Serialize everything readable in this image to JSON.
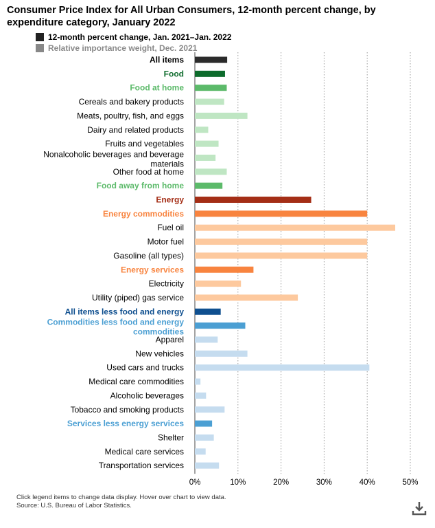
{
  "chart_data": {
    "type": "bar",
    "orientation": "horizontal",
    "title": "Consumer Price Index for All Urban Consumers, 12-month percent change, by expenditure category, January 2022",
    "legend": [
      {
        "name": "12-month percent change, Jan. 2021–Jan. 2022",
        "color": "#222222",
        "active": true
      },
      {
        "name": "Relative importance weight, Dec. 2021",
        "color": "#888888",
        "active": false
      }
    ],
    "xlim": [
      0,
      50
    ],
    "xticks": [
      0,
      10,
      20,
      30,
      40,
      50
    ],
    "xtick_labels": [
      "0%",
      "10%",
      "20%",
      "30%",
      "40%",
      "50%"
    ],
    "categories": [
      {
        "label": "All items",
        "value": 7.5,
        "color": "#2b2b2b",
        "label_color": "#000000",
        "bold": true
      },
      {
        "label": "Food",
        "value": 7.0,
        "color": "#0d6b2c",
        "label_color": "#0d6b2c",
        "bold": true
      },
      {
        "label": "Food at home",
        "value": 7.4,
        "color": "#5cba6a",
        "label_color": "#5cba6a",
        "bold": true
      },
      {
        "label": "Cereals and bakery products",
        "value": 6.8,
        "color": "#bfe6c3",
        "label_color": "#000000",
        "bold": false
      },
      {
        "label": "Meats, poultry, fish, and eggs",
        "value": 12.2,
        "color": "#bfe6c3",
        "label_color": "#000000",
        "bold": false
      },
      {
        "label": "Dairy and related products",
        "value": 3.1,
        "color": "#bfe6c3",
        "label_color": "#000000",
        "bold": false
      },
      {
        "label": "Fruits and vegetables",
        "value": 5.5,
        "color": "#bfe6c3",
        "label_color": "#000000",
        "bold": false
      },
      {
        "label": "Nonalcoholic beverages and beverage materials",
        "value": 4.8,
        "color": "#bfe6c3",
        "label_color": "#000000",
        "bold": false
      },
      {
        "label": "Other food at home",
        "value": 7.4,
        "color": "#bfe6c3",
        "label_color": "#000000",
        "bold": false
      },
      {
        "label": "Food away from home",
        "value": 6.4,
        "color": "#5cba6a",
        "label_color": "#5cba6a",
        "bold": true
      },
      {
        "label": "Energy",
        "value": 27.0,
        "color": "#a42e16",
        "label_color": "#a42e16",
        "bold": true
      },
      {
        "label": "Energy commodities",
        "value": 40.0,
        "color": "#f8843f",
        "label_color": "#f8843f",
        "bold": true
      },
      {
        "label": "Fuel oil",
        "value": 46.5,
        "color": "#fdc99e",
        "label_color": "#000000",
        "bold": false
      },
      {
        "label": "Motor fuel",
        "value": 40.0,
        "color": "#fdc99e",
        "label_color": "#000000",
        "bold": false
      },
      {
        "label": "Gasoline (all types)",
        "value": 40.0,
        "color": "#fdc99e",
        "label_color": "#000000",
        "bold": false
      },
      {
        "label": "Energy services",
        "value": 13.6,
        "color": "#f8843f",
        "label_color": "#f8843f",
        "bold": true
      },
      {
        "label": "Electricity",
        "value": 10.7,
        "color": "#fdc99e",
        "label_color": "#000000",
        "bold": false
      },
      {
        "label": "Utility (piped) gas service",
        "value": 23.9,
        "color": "#fdc99e",
        "label_color": "#000000",
        "bold": false
      },
      {
        "label": "All items less food and energy",
        "value": 6.0,
        "color": "#0f4f8f",
        "label_color": "#0f4f8f",
        "bold": true
      },
      {
        "label": "Commodities less food and energy commodities",
        "value": 11.7,
        "color": "#4b9fd3",
        "label_color": "#4b9fd3",
        "bold": true
      },
      {
        "label": "Apparel",
        "value": 5.3,
        "color": "#c5dcef",
        "label_color": "#000000",
        "bold": false
      },
      {
        "label": "New vehicles",
        "value": 12.2,
        "color": "#c5dcef",
        "label_color": "#000000",
        "bold": false
      },
      {
        "label": "Used cars and trucks",
        "value": 40.5,
        "color": "#c5dcef",
        "label_color": "#000000",
        "bold": false
      },
      {
        "label": "Medical care commodities",
        "value": 1.3,
        "color": "#c5dcef",
        "label_color": "#000000",
        "bold": false
      },
      {
        "label": "Alcoholic beverages",
        "value": 2.6,
        "color": "#c5dcef",
        "label_color": "#000000",
        "bold": false
      },
      {
        "label": "Tobacco and smoking products",
        "value": 6.9,
        "color": "#c5dcef",
        "label_color": "#000000",
        "bold": false
      },
      {
        "label": "Services less energy services",
        "value": 4.0,
        "color": "#4b9fd3",
        "label_color": "#4b9fd3",
        "bold": true
      },
      {
        "label": "Shelter",
        "value": 4.4,
        "color": "#c5dcef",
        "label_color": "#000000",
        "bold": false
      },
      {
        "label": "Medical care services",
        "value": 2.5,
        "color": "#c5dcef",
        "label_color": "#000000",
        "bold": false
      },
      {
        "label": "Transportation services",
        "value": 5.6,
        "color": "#c5dcef",
        "label_color": "#000000",
        "bold": false
      }
    ]
  },
  "footnote": {
    "line1": "Click legend items to change data display. Hover over chart to view data.",
    "line2": "Source: U.S. Bureau of Labor Statistics."
  },
  "icons": {
    "download": "download-icon"
  }
}
